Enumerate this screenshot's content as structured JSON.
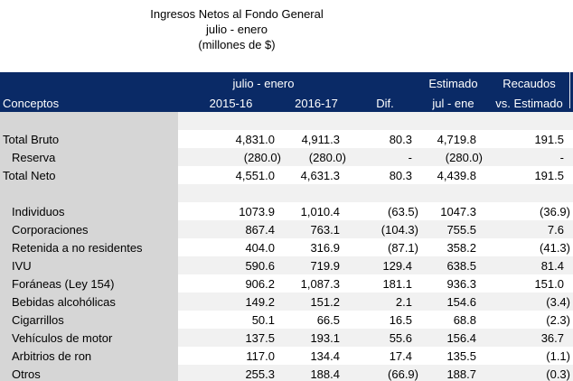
{
  "title": {
    "line1": "Ingresos Netos al Fondo General",
    "line2": "julio - enero",
    "line3": "(millones de $)"
  },
  "table": {
    "header": {
      "conceptos": "Conceptos",
      "group_julio_enero": "julio - enero",
      "group_estimado": "Estimado",
      "group_recaudos": "Recaudos",
      "col_2015_16": "2015-16",
      "col_2016_17": "2016-17",
      "col_dif": "Dif.",
      "col_jul_ene": "jul - ene",
      "col_vs_estimado": "vs. Estimado"
    },
    "rows": [
      {
        "label": "",
        "blank": true,
        "indent": false,
        "values": [
          "",
          "",
          "",
          "",
          ""
        ]
      },
      {
        "label": "Total Bruto",
        "blank": false,
        "indent": false,
        "values": [
          "4,831.0",
          "4,911.3",
          "80.3",
          "4,719.8",
          "191.5"
        ]
      },
      {
        "label": "Reserva",
        "blank": false,
        "indent": true,
        "values": [
          "(280.0)",
          "(280.0)",
          "-",
          "(280.0)",
          "-"
        ]
      },
      {
        "label": "Total Neto",
        "blank": false,
        "indent": false,
        "values": [
          "4,551.0",
          "4,631.3",
          "80.3",
          "4,439.8",
          "191.5"
        ]
      },
      {
        "label": "",
        "blank": true,
        "indent": false,
        "values": [
          "",
          "",
          "",
          "",
          ""
        ]
      },
      {
        "label": "Individuos",
        "blank": false,
        "indent": true,
        "values": [
          "1073.9",
          "1,010.4",
          "(63.5)",
          "1047.3",
          "(36.9)"
        ]
      },
      {
        "label": "Corporaciones",
        "blank": false,
        "indent": true,
        "values": [
          "867.4",
          "763.1",
          "(104.3)",
          "755.5",
          "7.6"
        ]
      },
      {
        "label": "Retenida a no residentes",
        "blank": false,
        "indent": true,
        "values": [
          "404.0",
          "316.9",
          "(87.1)",
          "358.2",
          "(41.3)"
        ]
      },
      {
        "label": "IVU",
        "blank": false,
        "indent": true,
        "values": [
          "590.6",
          "719.9",
          "129.4",
          "638.5",
          "81.4"
        ]
      },
      {
        "label": "Foráneas (Ley 154)",
        "blank": false,
        "indent": true,
        "values": [
          "906.2",
          "1,087.3",
          "181.1",
          "936.3",
          "151.0"
        ]
      },
      {
        "label": "Bebidas alcohólicas",
        "blank": false,
        "indent": true,
        "values": [
          "149.2",
          "151.2",
          "2.1",
          "154.6",
          "(3.4)"
        ]
      },
      {
        "label": "Cigarrillos",
        "blank": false,
        "indent": true,
        "values": [
          "50.1",
          "66.5",
          "16.5",
          "68.8",
          "(2.3)"
        ]
      },
      {
        "label": "Vehículos de motor",
        "blank": false,
        "indent": true,
        "values": [
          "137.5",
          "193.1",
          "55.6",
          "156.4",
          "36.7"
        ]
      },
      {
        "label": "Arbitrios de ron",
        "blank": false,
        "indent": true,
        "values": [
          "117.0",
          "134.4",
          "17.4",
          "135.5",
          "(1.1)"
        ]
      },
      {
        "label": "Otros",
        "blank": false,
        "indent": true,
        "values": [
          "255.3",
          "188.4",
          "(66.9)",
          "188.7",
          "(0.3)"
        ]
      }
    ]
  },
  "colors": {
    "header_bg": "#0A2A66",
    "header_text": "#FFFFFF",
    "concepts_column_bg": "#D6D6D6",
    "stripe_bg": "#F1F1F1",
    "body_text": "#000000"
  }
}
